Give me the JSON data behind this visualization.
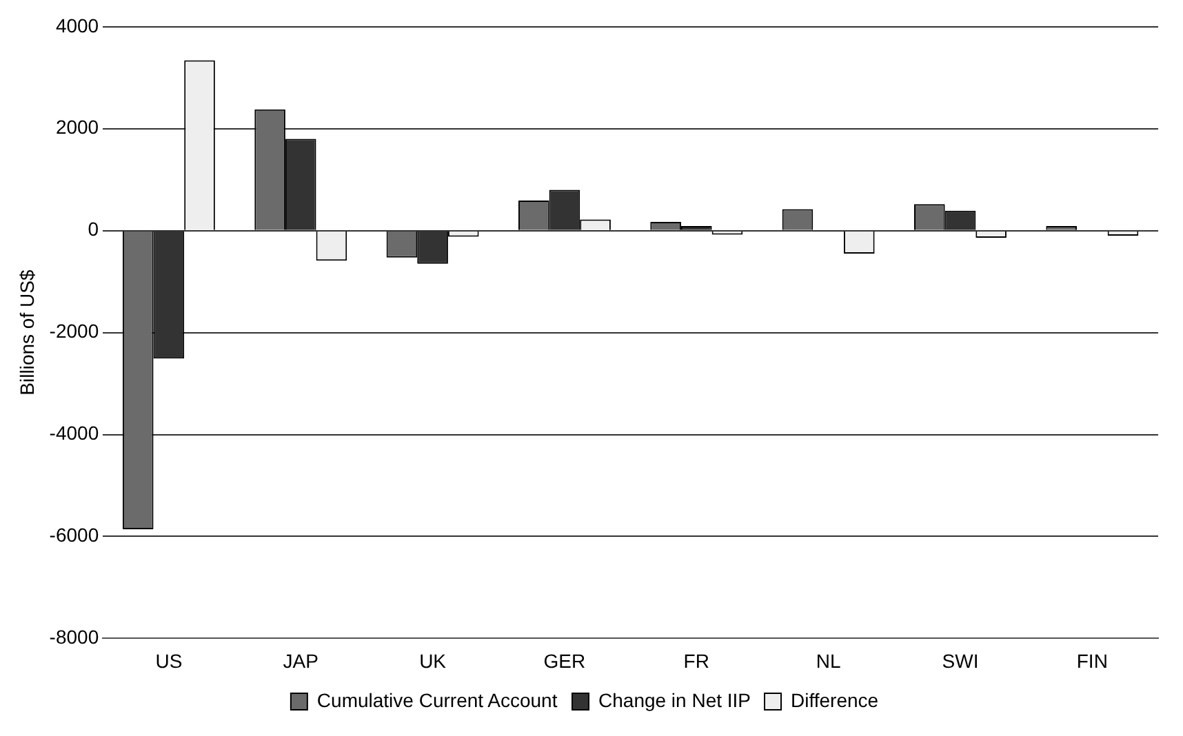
{
  "chart_data": {
    "type": "bar",
    "ylabel": "Billions of US$",
    "categories": [
      "US",
      "JAP",
      "UK",
      "GER",
      "FR",
      "NL",
      "SWI",
      "FIN"
    ],
    "series": [
      {
        "name": "Cumulative Current Account",
        "color": "#6b6b6b",
        "values": [
          -5860,
          2380,
          -530,
          590,
          170,
          420,
          520,
          90
        ]
      },
      {
        "name": "Change in Net IIP",
        "color": "#333333",
        "values": [
          -2510,
          1800,
          -650,
          800,
          90,
          -20,
          390,
          -10
        ]
      },
      {
        "name": "Difference",
        "color": "#eeeeee",
        "values": [
          3340,
          -590,
          -120,
          220,
          -80,
          -450,
          -140,
          -100
        ]
      }
    ],
    "ylim": [
      -8000,
      4000
    ],
    "yticks": [
      -8000,
      -6000,
      -4000,
      -2000,
      0,
      2000,
      4000
    ],
    "grid": "y",
    "legend": "bottom"
  }
}
